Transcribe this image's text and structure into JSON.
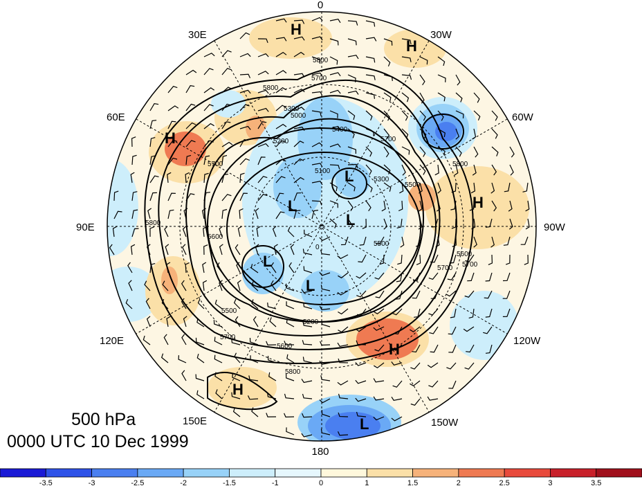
{
  "title": {
    "level": "500 hPa",
    "timestamp": "0000 UTC 10 Dec 1999"
  },
  "longitude_labels": [
    "0",
    "30W",
    "60W",
    "90W",
    "120W",
    "150W",
    "180",
    "150E",
    "120E",
    "90E",
    "60E",
    "30E"
  ],
  "height_contours": [
    {
      "label": "5800"
    },
    {
      "label": "5800"
    },
    {
      "label": "5800"
    },
    {
      "label": "5800"
    },
    {
      "label": "5800"
    },
    {
      "label": "5700"
    },
    {
      "label": "5700"
    },
    {
      "label": "5700"
    },
    {
      "label": "5700"
    },
    {
      "label": "5700"
    },
    {
      "label": "5700"
    },
    {
      "label": "5600"
    },
    {
      "label": "5600"
    },
    {
      "label": "5600"
    },
    {
      "label": "5500"
    },
    {
      "label": "5500"
    },
    {
      "label": "5500"
    },
    {
      "label": "5400"
    },
    {
      "label": "5300"
    },
    {
      "label": "5300"
    },
    {
      "label": "5200"
    },
    {
      "label": "5200"
    },
    {
      "label": "5100"
    },
    {
      "label": "5000"
    },
    {
      "label": "0"
    }
  ],
  "pressure_centers": [
    {
      "type": "H"
    },
    {
      "type": "H"
    },
    {
      "type": "H"
    },
    {
      "type": "H"
    },
    {
      "type": "H"
    },
    {
      "type": "H"
    },
    {
      "type": "L"
    },
    {
      "type": "L"
    },
    {
      "type": "L"
    },
    {
      "type": "L"
    },
    {
      "type": "L"
    },
    {
      "type": "L"
    }
  ],
  "colorbar": {
    "tick_labels": [
      "-3.5",
      "-3",
      "-2.5",
      "-2",
      "-1.5",
      "-1",
      "0",
      "1",
      "1.5",
      "2",
      "2.5",
      "3",
      "3.5"
    ],
    "colors": [
      "#1a1ad6",
      "#2e52e8",
      "#4a7ff0",
      "#6aa9f5",
      "#98d2f8",
      "#cdeefb",
      "#e6f7fd",
      "#fff8dc",
      "#fbe0a8",
      "#f6b27a",
      "#ef7a52",
      "#e84a3c",
      "#c8202a",
      "#a0101c"
    ]
  },
  "colors": {
    "cool_fill": "#9ccff0",
    "cold_core": "#3a78e6",
    "warm_fill": "#f7d9a8",
    "hot_core": "#ec7446",
    "background": "#fdf6e3"
  }
}
